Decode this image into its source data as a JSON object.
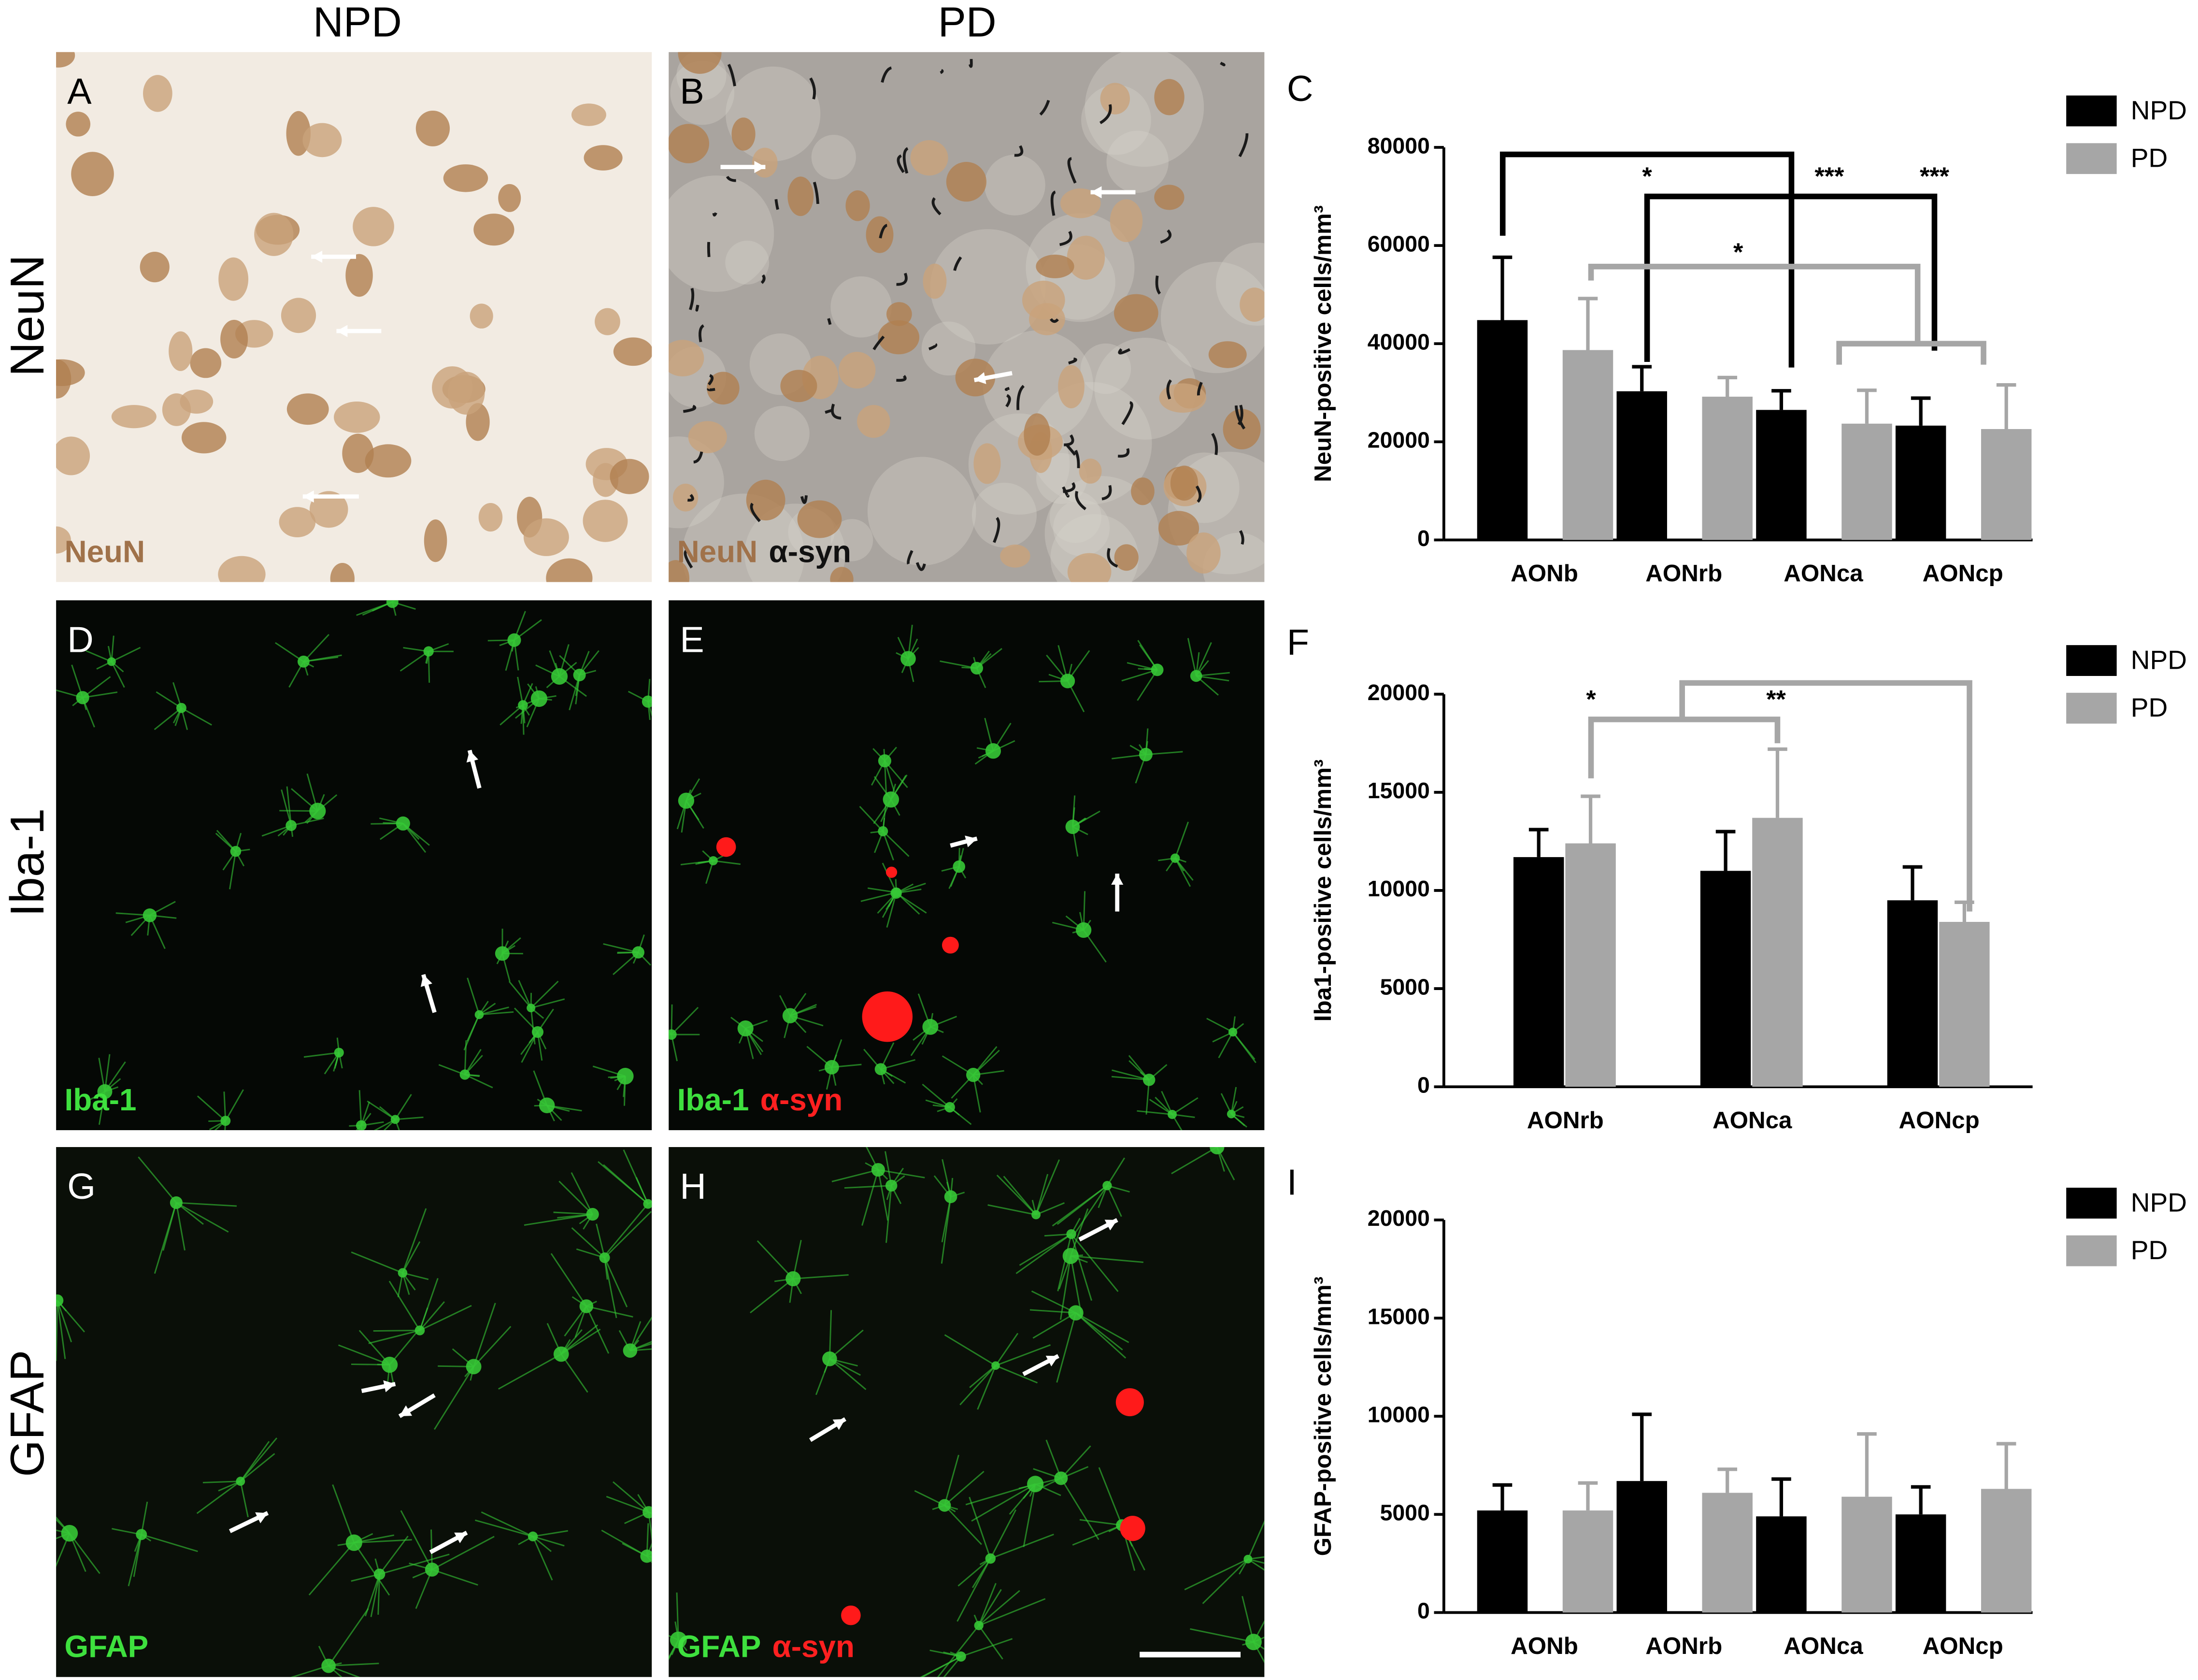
{
  "columns": [
    "NPD",
    "PD"
  ],
  "rows": [
    "NeuN",
    "Iba-1",
    "GFAP"
  ],
  "panels": [
    {
      "letter": "A",
      "stains": [
        "NeuN"
      ]
    },
    {
      "letter": "B",
      "stains": [
        "NeuN",
        "α-syn"
      ]
    },
    {
      "letter": "D",
      "stains": [
        "Iba-1"
      ]
    },
    {
      "letter": "E",
      "stains": [
        "Iba-1",
        "α-syn"
      ]
    },
    {
      "letter": "G",
      "stains": [
        "GFAP"
      ]
    },
    {
      "letter": "H",
      "stains": [
        "GFAP",
        "α-syn"
      ]
    }
  ],
  "chart_data": [
    {
      "type": "bar",
      "label": "C",
      "ylabel": "NeuN-positive cells/mm³",
      "categories": [
        "AONb",
        "AONrb",
        "AONca",
        "AONcp"
      ],
      "series": [
        {
          "name": "NPD",
          "color": "#000000",
          "values": [
            44800,
            30300,
            26500,
            23300
          ],
          "errors": [
            12800,
            5000,
            3900,
            5600
          ]
        },
        {
          "name": "PD",
          "color": "#a6a6a6",
          "values": [
            38700,
            29200,
            23700,
            22600
          ],
          "errors": [
            10500,
            3900,
            6800,
            9000
          ]
        }
      ],
      "ylim": [
        0,
        80000
      ],
      "yticks": [
        0,
        20000,
        40000,
        60000,
        80000
      ],
      "annotations": [
        "*",
        "***",
        "***",
        "*"
      ]
    },
    {
      "type": "bar",
      "label": "F",
      "ylabel": "Iba1-positive cells/mm³",
      "categories": [
        "AONrb",
        "AONca",
        "AONcp"
      ],
      "series": [
        {
          "name": "NPD",
          "color": "#000000",
          "values": [
            11700,
            11000,
            9500
          ],
          "errors": [
            1400,
            2000,
            1700
          ]
        },
        {
          "name": "PD",
          "color": "#a6a6a6",
          "values": [
            12400,
            13700,
            8400
          ],
          "errors": [
            2400,
            3500,
            1000
          ]
        }
      ],
      "ylim": [
        0,
        20000
      ],
      "yticks": [
        0,
        5000,
        10000,
        15000,
        20000
      ],
      "annotations": [
        "*",
        "**"
      ]
    },
    {
      "type": "bar",
      "label": "I",
      "ylabel": "GFAP-positive cells/mm³",
      "categories": [
        "AONb",
        "AONrb",
        "AONca",
        "AONcp"
      ],
      "series": [
        {
          "name": "NPD",
          "color": "#000000",
          "values": [
            5200,
            6700,
            4900,
            5000
          ],
          "errors": [
            1300,
            3400,
            1900,
            1400
          ]
        },
        {
          "name": "PD",
          "color": "#a6a6a6",
          "values": [
            5200,
            6100,
            5900,
            6300
          ],
          "errors": [
            1400,
            1200,
            3200,
            2300
          ]
        }
      ],
      "ylim": [
        0,
        20000
      ],
      "yticks": [
        0,
        5000,
        10000,
        15000,
        20000
      ],
      "annotations": []
    }
  ]
}
